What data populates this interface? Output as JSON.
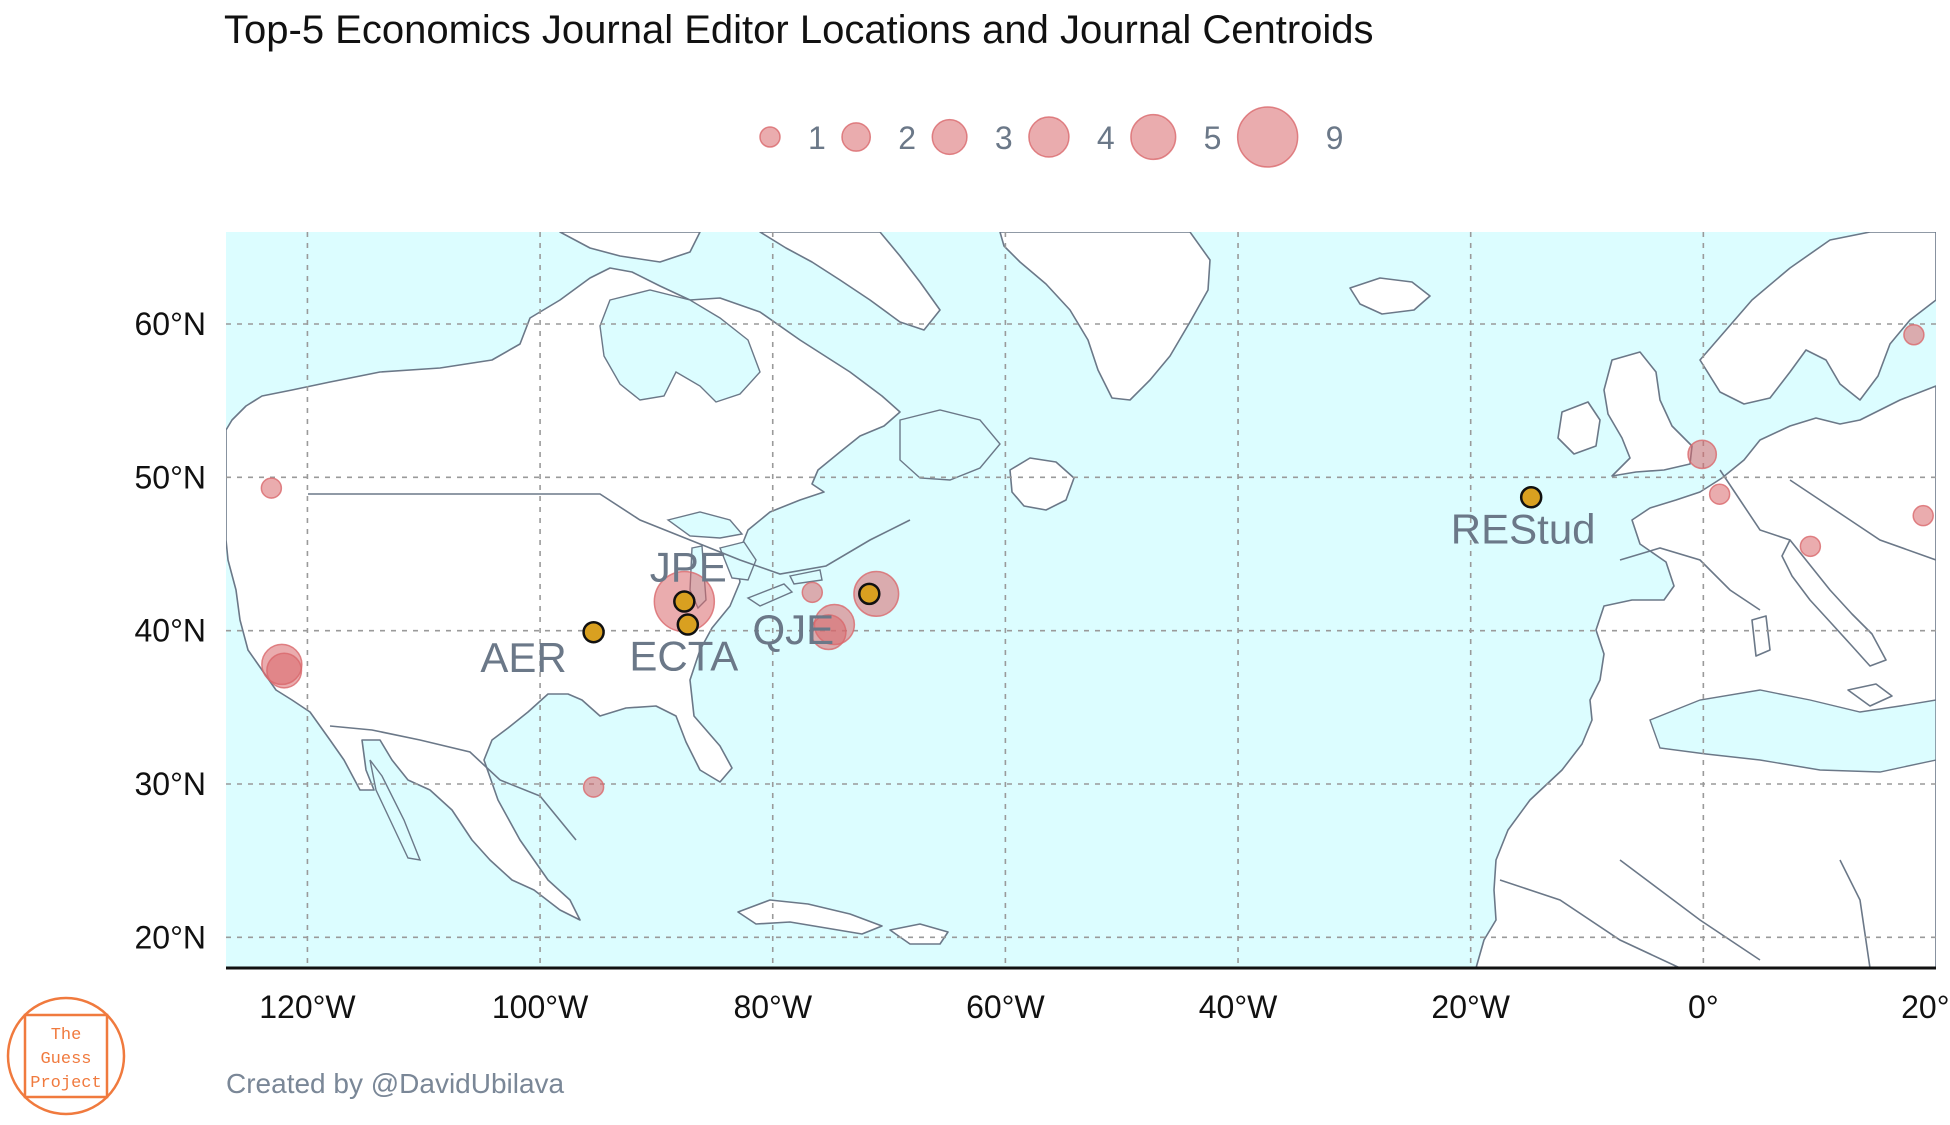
{
  "title": "Top-5 Economics Journal Editor Locations and Journal Centroids",
  "credit": "Created by @DavidUbilava",
  "logo": {
    "lines": [
      "The",
      "Guess",
      "Project"
    ],
    "color": "#f07a3e"
  },
  "colors": {
    "ocean": "#dcfdff",
    "land": "#ffffff",
    "border": "#6b7888",
    "editor_bubble": "#d9686c",
    "centroid": "#d9a020",
    "label": "#6b7888",
    "grid": "#9a9a9a"
  },
  "map": {
    "lon_range": [
      -127,
      20
    ],
    "lat_range": [
      18,
      66
    ],
    "x_ticks": [
      {
        "lon": -120,
        "label": "120°W"
      },
      {
        "lon": -100,
        "label": "100°W"
      },
      {
        "lon": -80,
        "label": "80°W"
      },
      {
        "lon": -60,
        "label": "60°W"
      },
      {
        "lon": -40,
        "label": "40°W"
      },
      {
        "lon": -20,
        "label": "20°W"
      },
      {
        "lon": 0,
        "label": "0°"
      },
      {
        "lon": 20,
        "label": "20°E"
      }
    ],
    "y_ticks": [
      {
        "lat": 20,
        "label": "20°N"
      },
      {
        "lat": 30,
        "label": "30°N"
      },
      {
        "lat": 40,
        "label": "40°N"
      },
      {
        "lat": 50,
        "label": "50°N"
      },
      {
        "lat": 60,
        "label": "60°N"
      }
    ],
    "grid": "dashed"
  },
  "legend": {
    "position": "top",
    "entries": [
      {
        "value": 1,
        "label": "1"
      },
      {
        "value": 2,
        "label": "2"
      },
      {
        "value": 3,
        "label": "3"
      },
      {
        "value": 4,
        "label": "4"
      },
      {
        "value": 5,
        "label": "5"
      },
      {
        "value": 9,
        "label": "9"
      }
    ]
  },
  "editor_locations": [
    {
      "lon": -123.1,
      "lat": 49.3,
      "count": 1
    },
    {
      "lon": -122.2,
      "lat": 37.8,
      "count": 4
    },
    {
      "lon": -122.0,
      "lat": 37.4,
      "count": 3
    },
    {
      "lon": -95.4,
      "lat": 29.8,
      "count": 1
    },
    {
      "lon": -87.6,
      "lat": 41.9,
      "count": 9
    },
    {
      "lon": -76.6,
      "lat": 42.5,
      "count": 1
    },
    {
      "lon": -75.2,
      "lat": 39.9,
      "count": 3
    },
    {
      "lon": -74.7,
      "lat": 40.4,
      "count": 4
    },
    {
      "lon": -71.1,
      "lat": 42.4,
      "count": 5
    },
    {
      "lon": -0.1,
      "lat": 51.5,
      "count": 2
    },
    {
      "lon": 1.4,
      "lat": 48.9,
      "count": 1
    },
    {
      "lon": 9.2,
      "lat": 45.5,
      "count": 1
    },
    {
      "lon": 18.1,
      "lat": 59.3,
      "count": 1
    },
    {
      "lon": 18.9,
      "lat": 47.5,
      "count": 1
    }
  ],
  "journal_centroids": [
    {
      "name": "AER",
      "lon": -95.4,
      "lat": 39.9
    },
    {
      "name": "ECTA",
      "lon": -87.3,
      "lat": 40.4
    },
    {
      "name": "JPE",
      "lon": -87.6,
      "lat": 41.9
    },
    {
      "name": "QJE",
      "lon": -71.7,
      "lat": 42.4
    },
    {
      "name": "REStud",
      "lon": -14.8,
      "lat": 48.7
    }
  ]
}
